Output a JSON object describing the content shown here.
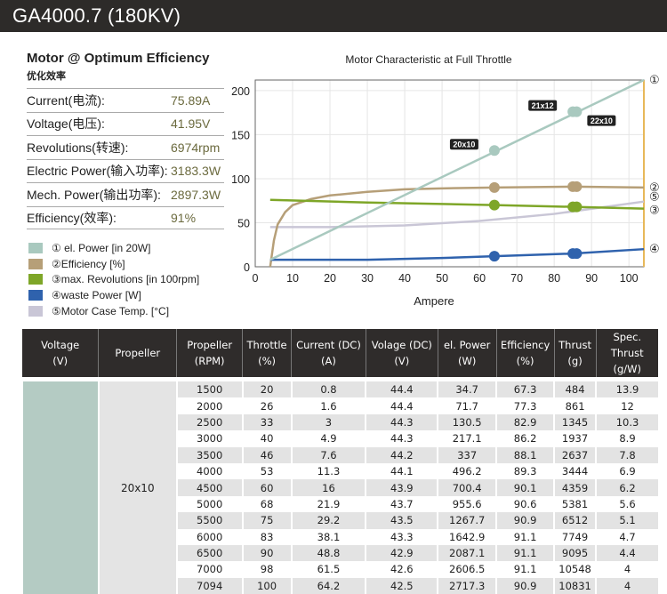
{
  "title": "GA4000.7 (180KV)",
  "spec": {
    "heading": "Motor @ Optimum Efficiency",
    "subheading": "优化效率",
    "rows": [
      {
        "label": "Current(电流):",
        "value": "75.89A"
      },
      {
        "label": "Voltage(电压):",
        "value": "41.95V"
      },
      {
        "label": "Revolutions(转速):",
        "value": "6974rpm"
      },
      {
        "label": "Electric Power(输入功率):",
        "value": "3183.3W"
      },
      {
        "label": "Mech. Power(输出功率):",
        "value": "2897.3W"
      },
      {
        "label": "Efficiency(效率):",
        "value": "91%"
      }
    ]
  },
  "chart_data": {
    "type": "line",
    "title": "Motor Characteristic at Full Throttle",
    "xlabel": "Ampere",
    "ylabel": "",
    "xlim": [
      0,
      104
    ],
    "ylim": [
      0,
      212
    ],
    "xticks": [
      "0",
      "10",
      "20",
      "30",
      "40",
      "50",
      "60",
      "70",
      "80",
      "90",
      "100"
    ],
    "yticks": [
      "0",
      "50",
      "100",
      "150",
      "200"
    ],
    "grid": true,
    "series": [
      {
        "name": "① el. Power [in 20W]",
        "marker": "①",
        "color": "#a9c9bf",
        "x": [
          4,
          104
        ],
        "y": [
          8,
          212
        ],
        "points": [
          {
            "x": 64,
            "y": 132,
            "label": "20x10"
          },
          {
            "x": 85,
            "y": 176,
            "label": "21x12"
          },
          {
            "x": 86,
            "y": 176,
            "label": "22x10"
          }
        ]
      },
      {
        "name": "②Efficiency [%]",
        "marker": "②",
        "color": "#b69f78",
        "x": [
          4,
          5,
          6,
          8,
          10,
          15,
          20,
          30,
          40,
          50,
          64,
          85,
          104
        ],
        "y": [
          0,
          30,
          48,
          62,
          70,
          77,
          81,
          85,
          88,
          89,
          90,
          91,
          90
        ],
        "points": [
          {
            "x": 64,
            "y": 90
          },
          {
            "x": 85,
            "y": 91
          },
          {
            "x": 86,
            "y": 91
          }
        ]
      },
      {
        "name": "③max. Revolutions [in 100rpm]",
        "marker": "③",
        "color": "#7ea628",
        "x": [
          4,
          30,
          64,
          85,
          104
        ],
        "y": [
          76,
          73,
          70,
          68,
          66
        ],
        "points": [
          {
            "x": 64,
            "y": 70
          },
          {
            "x": 85,
            "y": 68
          },
          {
            "x": 86,
            "y": 68
          }
        ]
      },
      {
        "name": "④waste Power [W]",
        "marker": "④",
        "color": "#2f62ad",
        "x": [
          4,
          30,
          50,
          64,
          85,
          104
        ],
        "y": [
          8,
          8,
          10,
          12,
          15,
          20
        ],
        "points": [
          {
            "x": 64,
            "y": 12
          },
          {
            "x": 85,
            "y": 15
          },
          {
            "x": 86,
            "y": 15
          }
        ]
      },
      {
        "name": "⑤Motor Case Temp. [°C]",
        "marker": "⑤",
        "color": "#c9c6d6",
        "x": [
          4,
          20,
          40,
          60,
          80,
          104
        ],
        "y": [
          45,
          45,
          47,
          52,
          60,
          74
        ],
        "points": []
      }
    ]
  },
  "table": {
    "headers": [
      [
        "Voltage",
        "(V)"
      ],
      [
        "Propeller",
        ""
      ],
      [
        "Propeller",
        "(RPM)"
      ],
      [
        "Throttle",
        "(%)"
      ],
      [
        "Current (DC)",
        "(A)"
      ],
      [
        "Volage (DC)",
        "(V)"
      ],
      [
        "el. Power",
        "(W)"
      ],
      [
        "Efficiency",
        "(%)"
      ],
      [
        "Thrust",
        "(g)"
      ],
      [
        "Spec. Thrust",
        "(g/W)"
      ]
    ],
    "voltage": "",
    "propeller": "20x10",
    "rows": [
      [
        "1500",
        "20",
        "0.8",
        "44.4",
        "34.7",
        "67.3",
        "484",
        "13.9"
      ],
      [
        "2000",
        "26",
        "1.6",
        "44.4",
        "71.7",
        "77.3",
        "861",
        "12"
      ],
      [
        "2500",
        "33",
        "3",
        "44.3",
        "130.5",
        "82.9",
        "1345",
        "10.3"
      ],
      [
        "3000",
        "40",
        "4.9",
        "44.3",
        "217.1",
        "86.2",
        "1937",
        "8.9"
      ],
      [
        "3500",
        "46",
        "7.6",
        "44.2",
        "337",
        "88.1",
        "2637",
        "7.8"
      ],
      [
        "4000",
        "53",
        "11.3",
        "44.1",
        "496.2",
        "89.3",
        "3444",
        "6.9"
      ],
      [
        "4500",
        "60",
        "16",
        "43.9",
        "700.4",
        "90.1",
        "4359",
        "6.2"
      ],
      [
        "5000",
        "68",
        "21.9",
        "43.7",
        "955.6",
        "90.6",
        "5381",
        "5.6"
      ],
      [
        "5500",
        "75",
        "29.2",
        "43.5",
        "1267.7",
        "90.9",
        "6512",
        "5.1"
      ],
      [
        "6000",
        "83",
        "38.1",
        "43.3",
        "1642.9",
        "91.1",
        "7749",
        "4.7"
      ],
      [
        "6500",
        "90",
        "48.8",
        "42.9",
        "2087.1",
        "91.1",
        "9095",
        "4.4"
      ],
      [
        "7000",
        "98",
        "61.5",
        "42.6",
        "2606.5",
        "91.1",
        "10548",
        "4"
      ],
      [
        "7094",
        "100",
        "64.2",
        "42.5",
        "2717.3",
        "90.9",
        "10831",
        "4"
      ]
    ]
  }
}
